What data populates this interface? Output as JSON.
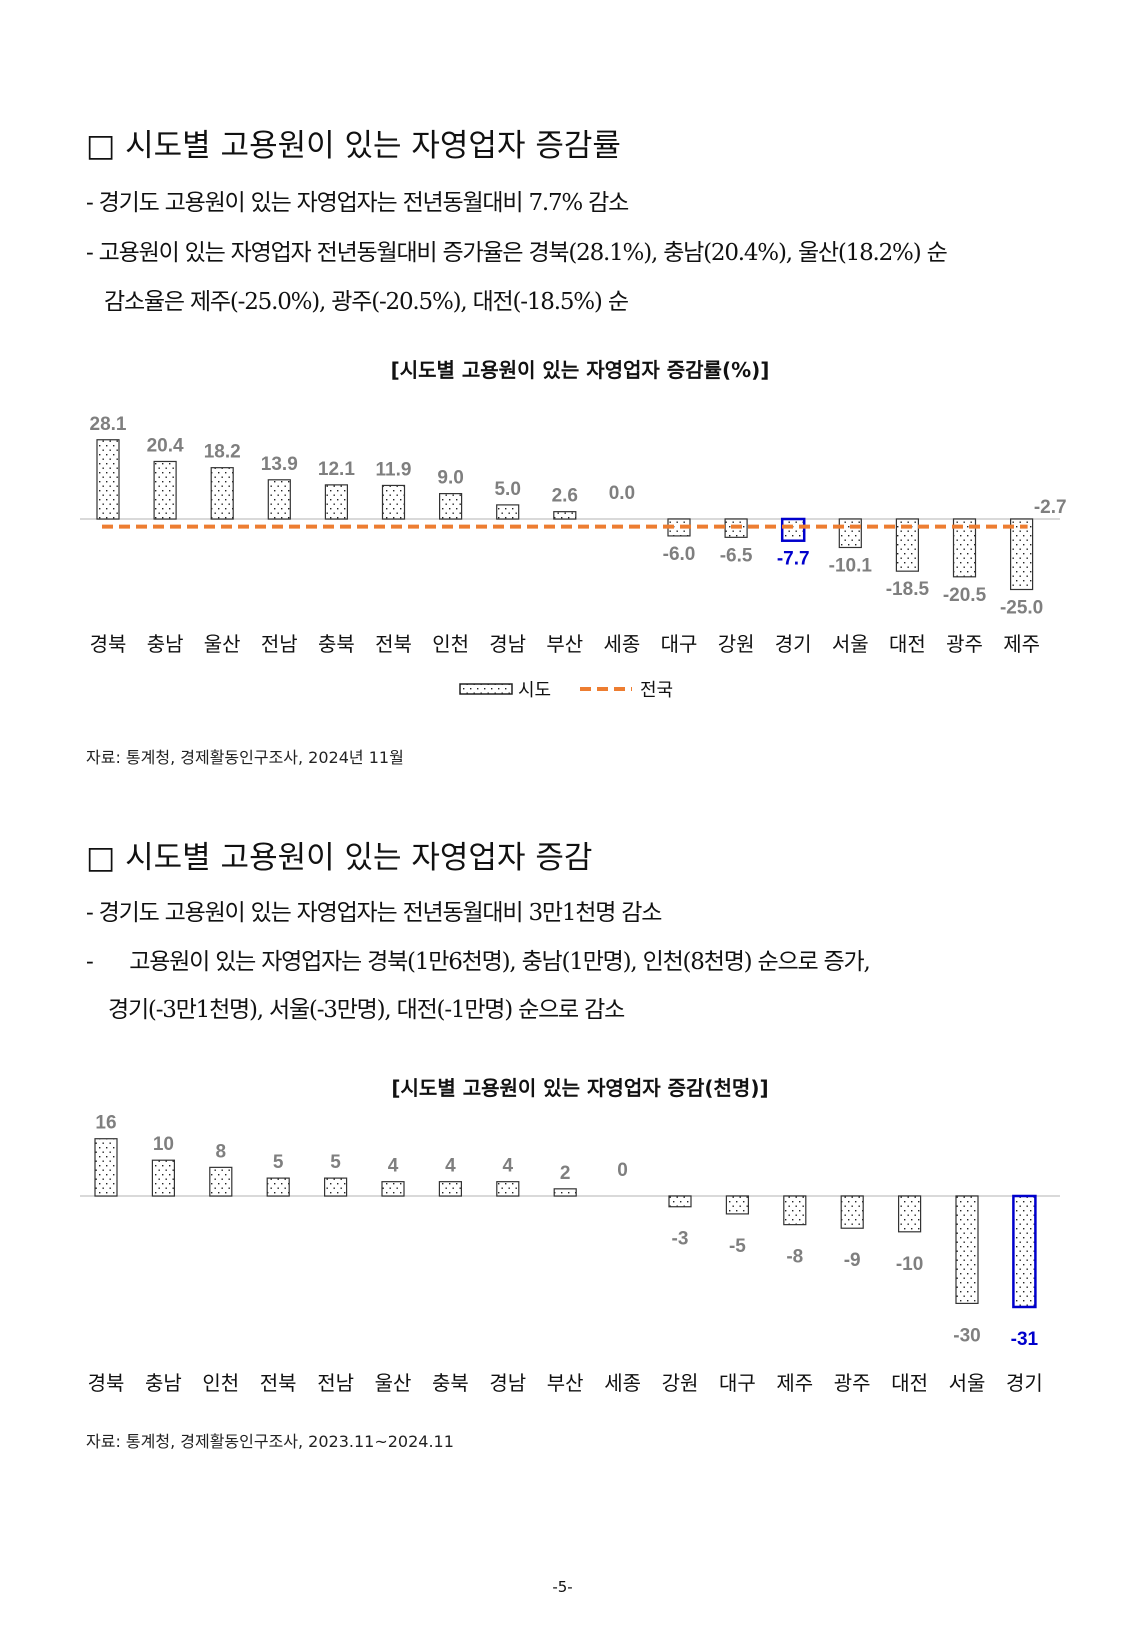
{
  "section1": {
    "title": "□ 시도별 고용원이 있는 자영업자 증감률",
    "bullets": [
      "- 경기도 고용원이 있는 자영업자는 전년동월대비 7.7% 감소",
      "- 고용원이 있는 자영업자 전년동월대비 증가율은 경북(28.1%), 충남(20.4%),  울산(18.2%) 순",
      "감소율은 제주(-25.0%), 광주(-20.5%), 대전(-18.5%) 순"
    ],
    "source": "자료: 통계청, 경제활동인구조사, 2024년 11월"
  },
  "section2": {
    "title": "□ 시도별 고용원이 있는 자영업자 증감",
    "bullets": [
      "- 경기도 고용원이 있는 자영업자는 전년동월대비 3만1천명 감소",
      "-      고용원이 있는 자영업자는 경북(1만6천명), 충남(1만명), 인천(8천명) 순으로 증가,",
      "경기(-3만1천명), 서울(-3만명), 대전(-1만명) 순으로 감소"
    ],
    "source": "자료: 통계청, 경제활동인구조사, 2023.11~2024.11"
  },
  "page_number": "-5-",
  "colors": {
    "bar_edge": "#333333",
    "highlight": "#0000cc",
    "national": "#ed7d31",
    "label": "#7f7f7f"
  },
  "chart_data": [
    {
      "type": "bar",
      "title": "[시도별 고용원이 있는 자영업자 증감률(%)]",
      "categories": [
        "경북",
        "충남",
        "울산",
        "전남",
        "충북",
        "전북",
        "인천",
        "경남",
        "부산",
        "세종",
        "대구",
        "강원",
        "경기",
        "서울",
        "대전",
        "광주",
        "제주"
      ],
      "values": [
        28.1,
        20.4,
        18.2,
        13.9,
        12.1,
        11.9,
        9.0,
        5.0,
        2.6,
        0.0,
        -6.0,
        -6.5,
        -7.7,
        -10.1,
        -18.5,
        -20.5,
        -25.0
      ],
      "value_labels": [
        "28.1",
        "20.4",
        "18.2",
        "13.9",
        "12.1",
        "11.9",
        "9.0",
        "5.0",
        "2.6",
        "0.0",
        "-6.0",
        "-6.5",
        "-7.7",
        "-10.1",
        "-18.5",
        "-20.5",
        "-25.0"
      ],
      "highlight": "경기",
      "national": {
        "name": "전국",
        "value": -2.7,
        "label": "-2.7"
      },
      "legend": [
        "시도",
        "전국"
      ],
      "legend_position": "bottom"
    },
    {
      "type": "bar",
      "title": "[시도별 고용원이 있는 자영업자 증감(천명)]",
      "categories": [
        "경북",
        "충남",
        "인천",
        "전북",
        "전남",
        "울산",
        "충북",
        "경남",
        "부산",
        "세종",
        "강원",
        "대구",
        "제주",
        "광주",
        "대전",
        "서울",
        "경기"
      ],
      "values": [
        16,
        10,
        8,
        5,
        5,
        4,
        4,
        4,
        2,
        0,
        -3,
        -5,
        -8,
        -9,
        -10,
        -30,
        -31
      ],
      "value_labels": [
        "16",
        "10",
        "8",
        "5",
        "5",
        "4",
        "4",
        "4",
        "2",
        "0",
        "-3",
        "-5",
        "-8",
        "-9",
        "-10",
        "-30",
        "-31"
      ],
      "highlight": "경기"
    }
  ]
}
